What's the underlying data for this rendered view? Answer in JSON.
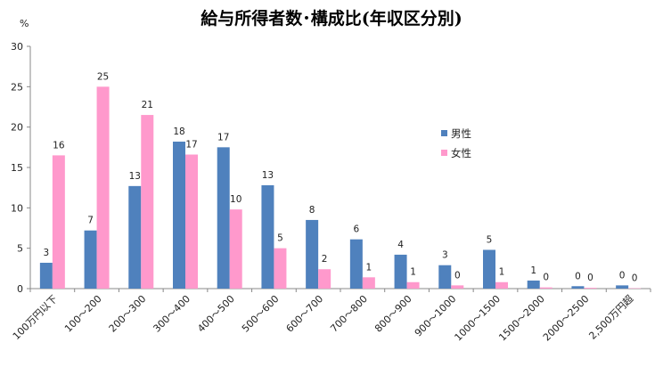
{
  "chart_data": {
    "type": "bar",
    "title": "給与所得者数･構成比(年収区分別)",
    "ylabel": "%",
    "xlabel": "",
    "ylim": [
      0,
      30
    ],
    "yticks": [
      0,
      5,
      10,
      15,
      20,
      25,
      30
    ],
    "grid": false,
    "legend_position": "right",
    "categories": [
      "100万円以下",
      "100～200",
      "200～300",
      "300～400",
      "400～500",
      "500～600",
      "600～700",
      "700～800",
      "800～900",
      "900～1000",
      "1000～1500",
      "1500～2000",
      "2000～2500",
      "2,500万円超"
    ],
    "series": [
      {
        "name": "男性",
        "color": "#4F81BD",
        "values": [
          3.2,
          7.2,
          12.7,
          18.2,
          17.5,
          12.8,
          8.5,
          6.1,
          4.2,
          2.9,
          4.8,
          1.0,
          0.3,
          0.4
        ],
        "labels": [
          "3",
          "7",
          "13",
          "18",
          "17",
          "13",
          "8",
          "6",
          "4",
          "3",
          "5",
          "1",
          "0",
          "0"
        ]
      },
      {
        "name": "女性",
        "color": "#FF99CC",
        "values": [
          16.5,
          25.0,
          21.5,
          16.6,
          9.8,
          5.0,
          2.4,
          1.4,
          0.8,
          0.4,
          0.8,
          0.15,
          0.1,
          0.05
        ],
        "labels": [
          "16",
          "25",
          "21",
          "17",
          "10",
          "5",
          "2",
          "1",
          "1",
          "0",
          "1",
          "0",
          "0",
          "0"
        ]
      }
    ]
  }
}
